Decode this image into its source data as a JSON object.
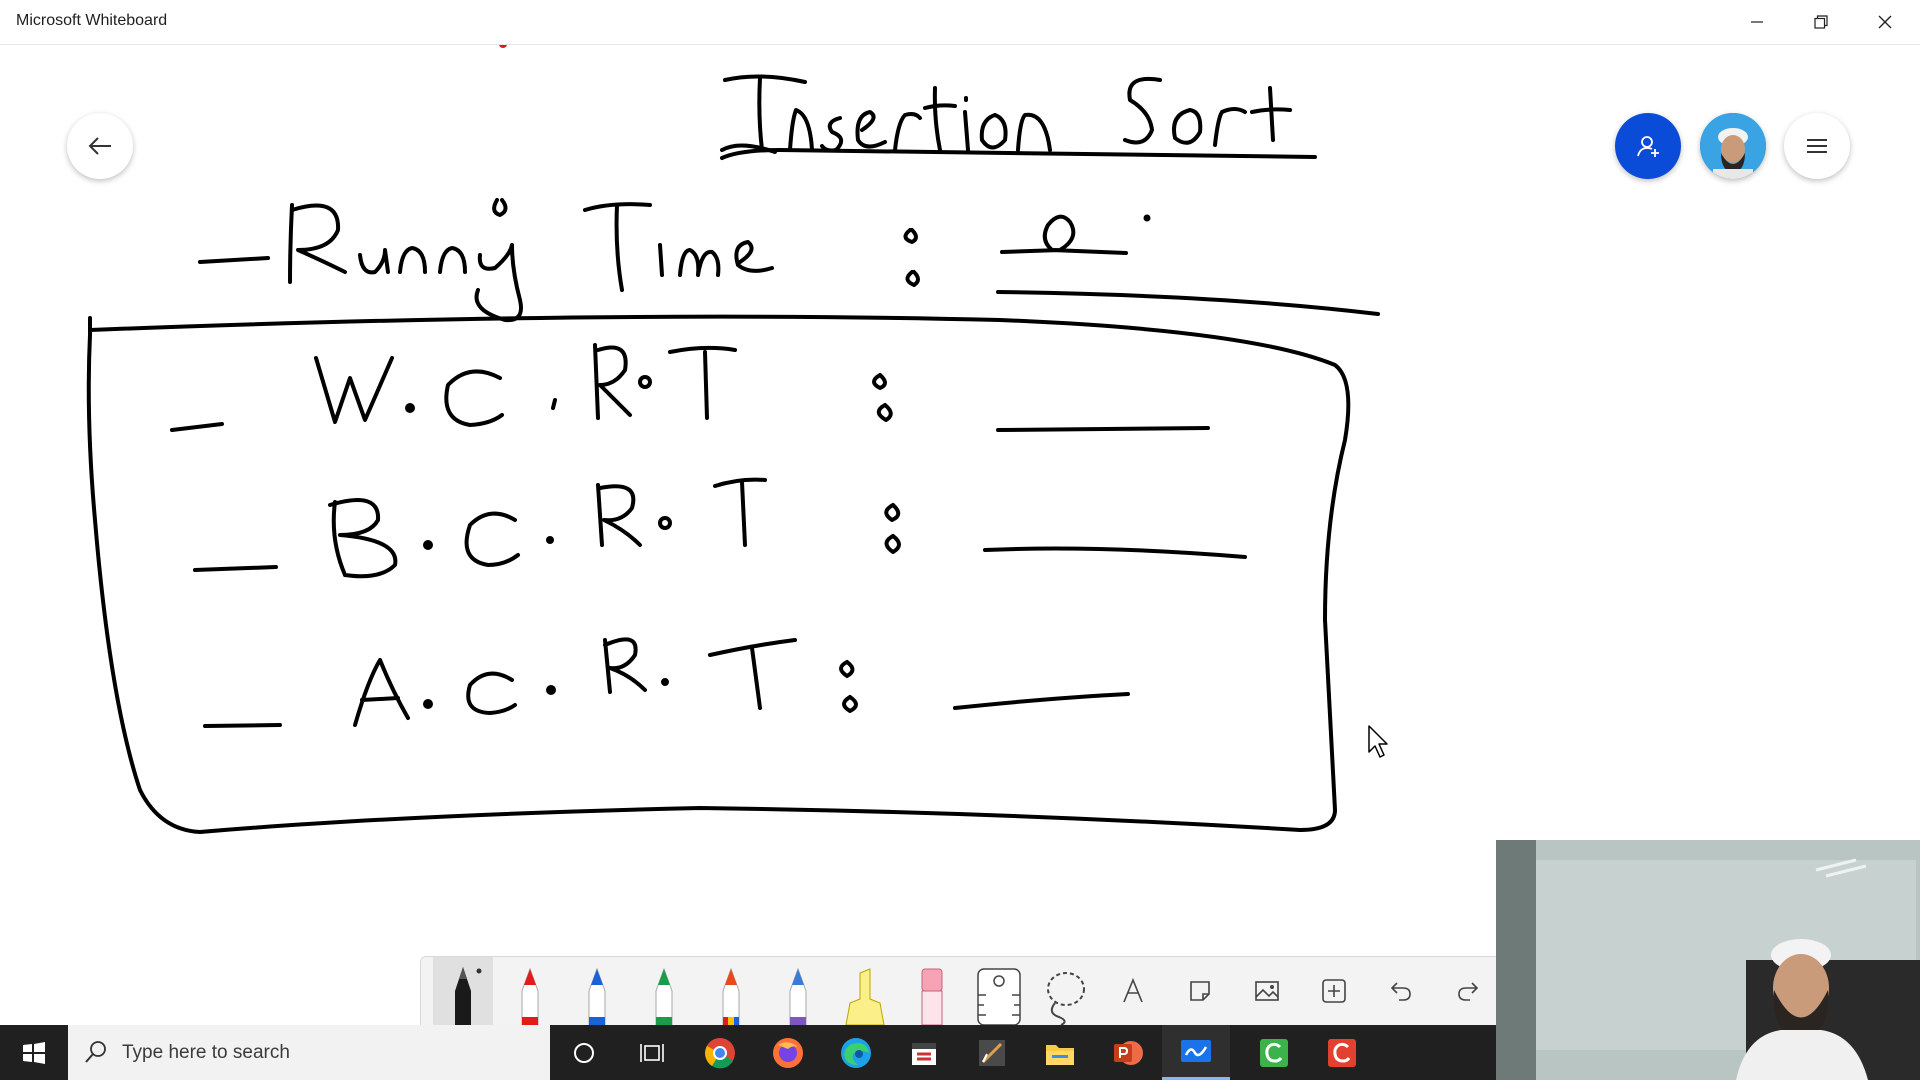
{
  "window": {
    "title": "Microsoft Whiteboard",
    "controls": [
      "minimize",
      "restore",
      "close"
    ]
  },
  "board": {
    "heading": "Insertion Sort",
    "lines": [
      {
        "text": "Running Time :",
        "answer": "Ω"
      },
      {
        "text": "W.C.R.T :"
      },
      {
        "text": "B.C.R.T :"
      },
      {
        "text": "A.C.R.T :"
      }
    ]
  },
  "header_buttons": [
    "back-icon",
    "invite-icon",
    "avatar",
    "menu-icon"
  ],
  "colors": {
    "ink": "#000000",
    "accent_blue": "#0a4bd8",
    "taskbar": "#202020",
    "toolbar": "#f3f3f3"
  },
  "toolbar": {
    "tools": [
      "black-pen",
      "red-pen",
      "blue-pen",
      "green-pen",
      "rainbow-pen",
      "galaxy-pen",
      "highlighter",
      "eraser",
      "ruler",
      "lasso",
      "text",
      "sticky-note",
      "image",
      "insert",
      "undo",
      "redo"
    ]
  },
  "taskbar": {
    "search_placeholder": "Type here to search",
    "apps": [
      "cortana-icon",
      "task-view-icon",
      "chrome-icon",
      "firefox-icon",
      "edge-icon",
      "calendar-icon",
      "app-icon",
      "file-explorer-icon",
      "powerpoint-icon",
      "whiteboard-icon",
      "camtasia-green-icon",
      "camtasia-icon"
    ]
  }
}
